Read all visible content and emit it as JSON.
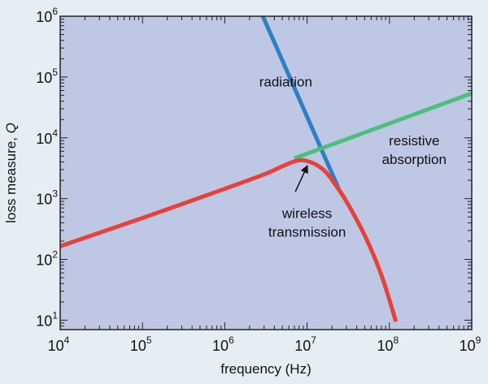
{
  "chart_data": {
    "type": "line",
    "xscale": "log",
    "yscale": "log",
    "xlim": [
      10000,
      1000000000
    ],
    "ylim": [
      7,
      1000000
    ],
    "xlabel": "frequency (Hz)",
    "ylabel": "loss measure, Q",
    "xticks": [
      {
        "value": 10000,
        "base": "10",
        "exp": "4"
      },
      {
        "value": 100000,
        "base": "10",
        "exp": "5"
      },
      {
        "value": 1000000,
        "base": "10",
        "exp": "6"
      },
      {
        "value": 10000000,
        "base": "10",
        "exp": "7"
      },
      {
        "value": 100000000,
        "base": "10",
        "exp": "8"
      },
      {
        "value": 1000000000,
        "base": "10",
        "exp": "9"
      }
    ],
    "yticks": [
      {
        "value": 10,
        "base": "10",
        "exp": "1"
      },
      {
        "value": 100,
        "base": "10",
        "exp": "2"
      },
      {
        "value": 1000,
        "base": "10",
        "exp": "3"
      },
      {
        "value": 10000,
        "base": "10",
        "exp": "4"
      },
      {
        "value": 100000,
        "base": "10",
        "exp": "5"
      },
      {
        "value": 1000000,
        "base": "10",
        "exp": "6"
      }
    ],
    "series": [
      {
        "name": "radiation",
        "color": "#2f7fc3",
        "points": [
          [
            2900000,
            1000000
          ],
          [
            24000000,
            1500
          ]
        ]
      },
      {
        "name": "resistive absorption",
        "color": "#4cc07a",
        "points": [
          [
            7000000,
            4600
          ],
          [
            1000000000,
            54000
          ]
        ]
      },
      {
        "name": "wireless transmission",
        "color": "#e8403a",
        "points": [
          [
            10000,
            165
          ],
          [
            100000,
            480
          ],
          [
            1000000,
            1450
          ],
          [
            3000000,
            2500
          ],
          [
            5000000,
            3400
          ],
          [
            7000000,
            4100
          ],
          [
            8500000,
            4300
          ],
          [
            10000000,
            4150
          ],
          [
            13000000,
            3600
          ],
          [
            17000000,
            2700
          ],
          [
            22000000,
            1700
          ],
          [
            30000000,
            900
          ],
          [
            50000000,
            250
          ],
          [
            80000000,
            55
          ],
          [
            120000000,
            9.5
          ]
        ]
      }
    ],
    "annotations": [
      {
        "id": "radiation",
        "lines": [
          "radiation"
        ],
        "x": 5500000,
        "y": 70000
      },
      {
        "id": "resistive",
        "lines": [
          "resistive",
          "absorption"
        ],
        "x": 200000000,
        "y": 7500
      },
      {
        "id": "wireless",
        "lines": [
          "wireless",
          "transmission"
        ],
        "x": 10000000,
        "y": 480,
        "arrow_to": [
          10000000,
          3400
        ],
        "arrow_from": [
          7200000,
          1300
        ]
      }
    ],
    "colors": {
      "plot_background": "#bec8e4",
      "frame": "#222222",
      "page_background": "#e6eef5"
    }
  }
}
